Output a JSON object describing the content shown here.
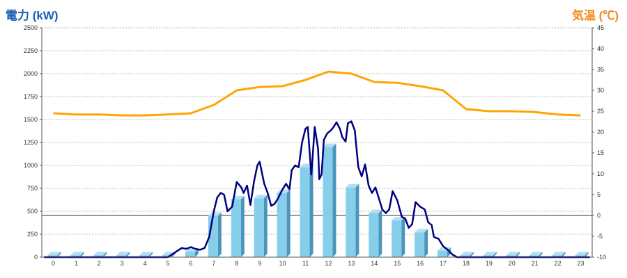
{
  "chart_data": {
    "type": "bar",
    "title_left": "電力 (kW)",
    "title_right": "気温 (℃)",
    "categories": [
      "0",
      "1",
      "2",
      "3",
      "4",
      "5",
      "6",
      "7",
      "8",
      "9",
      "10",
      "11",
      "12",
      "13",
      "14",
      "15",
      "16",
      "17",
      "18",
      "19",
      "20",
      "21",
      "22",
      "23"
    ],
    "y_left": {
      "lim": [
        0,
        2500
      ],
      "ticks": [
        0,
        250,
        500,
        750,
        1000,
        1250,
        1500,
        1750,
        2000,
        2250,
        2500
      ]
    },
    "y_right": {
      "lim": [
        -10,
        45
      ],
      "ticks": [
        -10,
        -5,
        0,
        5,
        10,
        15,
        20,
        25,
        30,
        35,
        40,
        45
      ]
    },
    "grid": true,
    "zero_reference_line": true,
    "series": [
      {
        "kind": "bar",
        "axis": "left",
        "values": [
          20,
          20,
          20,
          20,
          20,
          20,
          60,
          450,
          630,
          640,
          700,
          980,
          1200,
          760,
          480,
          400,
          270,
          70,
          20,
          20,
          20,
          20,
          20,
          20
        ]
      },
      {
        "kind": "line",
        "axis": "left",
        "points": [
          [
            -0.4,
            0
          ],
          [
            5,
            0
          ],
          [
            5.3,
            50
          ],
          [
            5.6,
            100
          ],
          [
            5.8,
            90
          ],
          [
            6,
            110
          ],
          [
            6.2,
            90
          ],
          [
            6.4,
            80
          ],
          [
            6.6,
            100
          ],
          [
            6.8,
            220
          ],
          [
            7,
            500
          ],
          [
            7.15,
            650
          ],
          [
            7.3,
            700
          ],
          [
            7.45,
            680
          ],
          [
            7.6,
            500
          ],
          [
            7.8,
            550
          ],
          [
            8,
            820
          ],
          [
            8.2,
            760
          ],
          [
            8.3,
            700
          ],
          [
            8.45,
            780
          ],
          [
            8.6,
            570
          ],
          [
            8.75,
            820
          ],
          [
            8.9,
            1000
          ],
          [
            9,
            1040
          ],
          [
            9.1,
            920
          ],
          [
            9.2,
            800
          ],
          [
            9.35,
            700
          ],
          [
            9.5,
            560
          ],
          [
            9.65,
            580
          ],
          [
            9.8,
            640
          ],
          [
            10,
            740
          ],
          [
            10.15,
            800
          ],
          [
            10.3,
            740
          ],
          [
            10.4,
            950
          ],
          [
            10.55,
            1000
          ],
          [
            10.7,
            980
          ],
          [
            10.85,
            1250
          ],
          [
            11,
            1400
          ],
          [
            11.1,
            1420
          ],
          [
            11.25,
            900
          ],
          [
            11.3,
            1050
          ],
          [
            11.4,
            1420
          ],
          [
            11.55,
            1180
          ],
          [
            11.6,
            850
          ],
          [
            11.7,
            900
          ],
          [
            11.8,
            1280
          ],
          [
            11.95,
            1350
          ],
          [
            12.1,
            1380
          ],
          [
            12.2,
            1410
          ],
          [
            12.35,
            1470
          ],
          [
            12.5,
            1400
          ],
          [
            12.6,
            1310
          ],
          [
            12.75,
            1260
          ],
          [
            12.85,
            1460
          ],
          [
            13,
            1480
          ],
          [
            13.15,
            1380
          ],
          [
            13.3,
            980
          ],
          [
            13.45,
            880
          ],
          [
            13.6,
            1010
          ],
          [
            13.75,
            780
          ],
          [
            13.9,
            700
          ],
          [
            14.05,
            760
          ],
          [
            14.2,
            640
          ],
          [
            14.35,
            520
          ],
          [
            14.5,
            480
          ],
          [
            14.65,
            520
          ],
          [
            14.8,
            720
          ],
          [
            15,
            620
          ],
          [
            15.2,
            440
          ],
          [
            15.35,
            420
          ],
          [
            15.5,
            320
          ],
          [
            15.65,
            360
          ],
          [
            15.8,
            600
          ],
          [
            16,
            550
          ],
          [
            16.2,
            520
          ],
          [
            16.35,
            380
          ],
          [
            16.5,
            350
          ],
          [
            16.6,
            220
          ],
          [
            16.8,
            200
          ],
          [
            17,
            120
          ],
          [
            17.2,
            80
          ],
          [
            17.4,
            30
          ],
          [
            17.6,
            0
          ],
          [
            23.4,
            0
          ]
        ]
      },
      {
        "kind": "line",
        "axis": "right",
        "points": [
          [
            0,
            24.5
          ],
          [
            1,
            24.2
          ],
          [
            2,
            24.2
          ],
          [
            3,
            24
          ],
          [
            4,
            24
          ],
          [
            5,
            24.2
          ],
          [
            6,
            24.5
          ],
          [
            7,
            26.5
          ],
          [
            8,
            30
          ],
          [
            9,
            30.8
          ],
          [
            10,
            31
          ],
          [
            11,
            32.5
          ],
          [
            12,
            34.5
          ],
          [
            13,
            34
          ],
          [
            14,
            32
          ],
          [
            15,
            31.8
          ],
          [
            16,
            31
          ],
          [
            17,
            30
          ],
          [
            18,
            25.5
          ],
          [
            19,
            25
          ],
          [
            20,
            25
          ],
          [
            21,
            24.8
          ],
          [
            22,
            24.2
          ],
          [
            23,
            24
          ]
        ]
      }
    ],
    "colors": {
      "bar_front": "#87ceeb",
      "bar_side": "#4a95b9",
      "bar_top": "#b4def2",
      "load_line": "#000080",
      "temp_line": "#ffa500"
    }
  }
}
